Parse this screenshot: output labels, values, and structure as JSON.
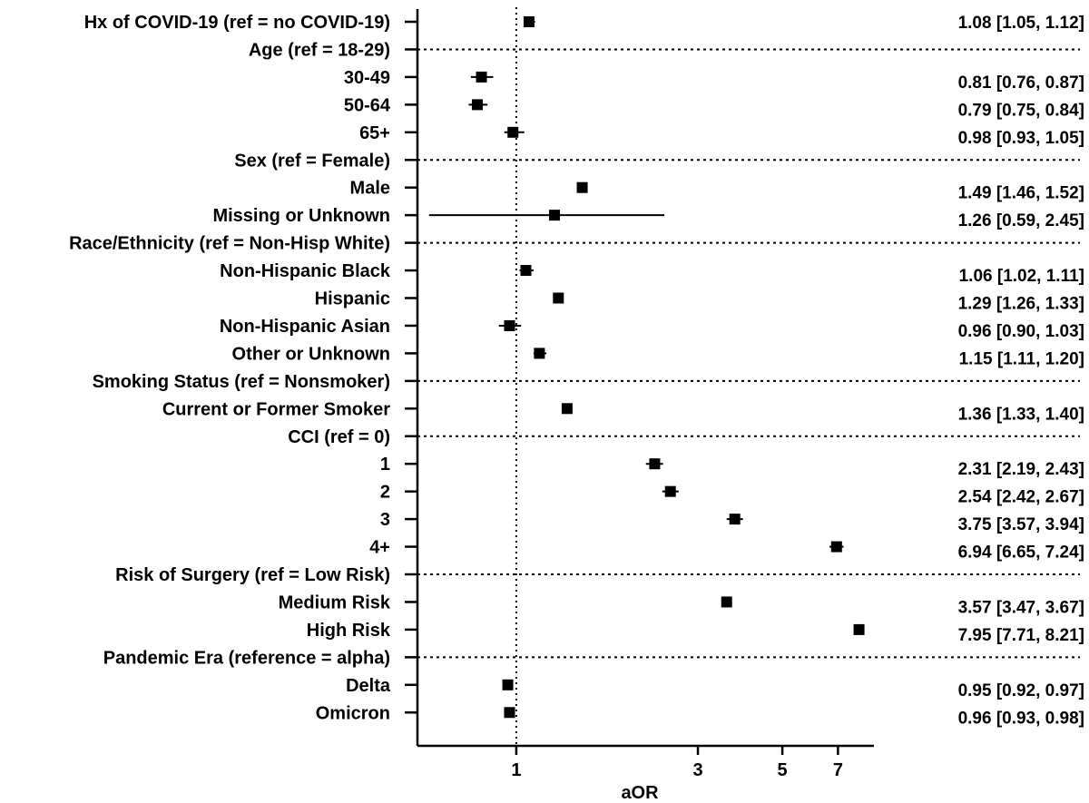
{
  "chart_data": {
    "type": "forest",
    "xlabel": "aOR",
    "x_scale": "log",
    "xlim": [
      0.55,
      8.7
    ],
    "reference_line": 1,
    "x_ticks": [
      {
        "value": 1,
        "label": "1"
      },
      {
        "value": 3,
        "label": "3"
      },
      {
        "value": 5,
        "label": "5"
      },
      {
        "value": 7,
        "label": "7"
      }
    ],
    "rows": [
      {
        "label": "Hx of COVID-19 (ref = no COVID-19)",
        "kind": "estimate",
        "or": 1.08,
        "lo": 1.05,
        "hi": 1.12,
        "text": "1.08 [1.05, 1.12]"
      },
      {
        "label": "Age (ref = 18-29)",
        "kind": "header"
      },
      {
        "label": "30-49",
        "kind": "estimate",
        "or": 0.81,
        "lo": 0.76,
        "hi": 0.87,
        "text": "0.81 [0.76, 0.87]"
      },
      {
        "label": "50-64",
        "kind": "estimate",
        "or": 0.79,
        "lo": 0.75,
        "hi": 0.84,
        "text": "0.79 [0.75, 0.84]"
      },
      {
        "label": "65+",
        "kind": "estimate",
        "or": 0.98,
        "lo": 0.93,
        "hi": 1.05,
        "text": "0.98 [0.93, 1.05]"
      },
      {
        "label": "Sex (ref = Female)",
        "kind": "header"
      },
      {
        "label": "Male",
        "kind": "estimate",
        "or": 1.49,
        "lo": 1.46,
        "hi": 1.52,
        "text": "1.49 [1.46, 1.52]"
      },
      {
        "label": "Missing or Unknown",
        "kind": "estimate",
        "or": 1.26,
        "lo": 0.59,
        "hi": 2.45,
        "text": "1.26 [0.59, 2.45]"
      },
      {
        "label": "Race/Ethnicity (ref = Non-Hisp White)",
        "kind": "header"
      },
      {
        "label": "Non-Hispanic Black",
        "kind": "estimate",
        "or": 1.06,
        "lo": 1.02,
        "hi": 1.11,
        "text": "1.06 [1.02, 1.11]"
      },
      {
        "label": "Hispanic",
        "kind": "estimate",
        "or": 1.29,
        "lo": 1.26,
        "hi": 1.33,
        "text": "1.29 [1.26, 1.33]"
      },
      {
        "label": "Non-Hispanic Asian",
        "kind": "estimate",
        "or": 0.96,
        "lo": 0.9,
        "hi": 1.03,
        "text": "0.96 [0.90, 1.03]"
      },
      {
        "label": "Other or Unknown",
        "kind": "estimate",
        "or": 1.15,
        "lo": 1.11,
        "hi": 1.2,
        "text": "1.15 [1.11, 1.20]"
      },
      {
        "label": "Smoking Status (ref = Nonsmoker)",
        "kind": "header"
      },
      {
        "label": "Current or Former Smoker",
        "kind": "estimate",
        "or": 1.36,
        "lo": 1.33,
        "hi": 1.4,
        "text": "1.36 [1.33, 1.40]"
      },
      {
        "label": "CCI (ref = 0)",
        "kind": "header"
      },
      {
        "label": "1",
        "kind": "estimate",
        "or": 2.31,
        "lo": 2.19,
        "hi": 2.43,
        "text": "2.31 [2.19, 2.43]"
      },
      {
        "label": "2",
        "kind": "estimate",
        "or": 2.54,
        "lo": 2.42,
        "hi": 2.67,
        "text": "2.54 [2.42, 2.67]"
      },
      {
        "label": "3",
        "kind": "estimate",
        "or": 3.75,
        "lo": 3.57,
        "hi": 3.94,
        "text": "3.75 [3.57, 3.94]"
      },
      {
        "label": "4+",
        "kind": "estimate",
        "or": 6.94,
        "lo": 6.65,
        "hi": 7.24,
        "text": "6.94 [6.65, 7.24]"
      },
      {
        "label": "Risk of Surgery (ref = Low Risk)",
        "kind": "header"
      },
      {
        "label": "Medium Risk",
        "kind": "estimate",
        "or": 3.57,
        "lo": 3.47,
        "hi": 3.67,
        "text": "3.57 [3.47, 3.67]"
      },
      {
        "label": "High Risk",
        "kind": "estimate",
        "or": 7.95,
        "lo": 7.71,
        "hi": 8.21,
        "text": "7.95 [7.71, 8.21]"
      },
      {
        "label": "Pandemic Era (reference = alpha)",
        "kind": "header"
      },
      {
        "label": "Delta",
        "kind": "estimate",
        "or": 0.95,
        "lo": 0.92,
        "hi": 0.97,
        "text": "0.95 [0.92, 0.97]"
      },
      {
        "label": "Omicron",
        "kind": "estimate",
        "or": 0.96,
        "lo": 0.93,
        "hi": 0.98,
        "text": "0.96 [0.93, 0.98]"
      }
    ]
  }
}
